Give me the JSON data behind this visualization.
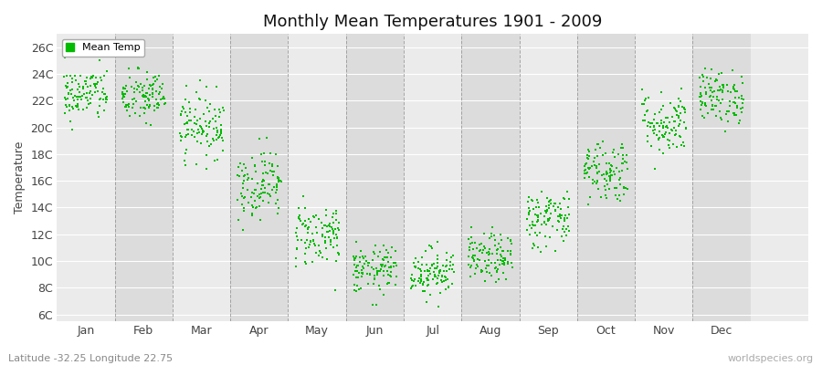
{
  "title": "Monthly Mean Temperatures 1901 - 2009",
  "ylabel": "Temperature",
  "subtitle": "Latitude -32.25 Longitude 22.75",
  "watermark": "worldspecies.org",
  "legend_label": "Mean Temp",
  "ytick_labels": [
    "6C",
    "8C",
    "10C",
    "12C",
    "14C",
    "16C",
    "18C",
    "20C",
    "22C",
    "24C",
    "26C"
  ],
  "ytick_values": [
    6,
    8,
    10,
    12,
    14,
    16,
    18,
    20,
    22,
    24,
    26
  ],
  "ylim": [
    5.5,
    27
  ],
  "xlim": [
    -0.5,
    12.5
  ],
  "xtick_positions": [
    0,
    1,
    2,
    3,
    4,
    5,
    6,
    7,
    8,
    9,
    10,
    11
  ],
  "xtick_labels": [
    "Jan",
    "Feb",
    "Mar",
    "Apr",
    "May",
    "Jun",
    "Jul",
    "Aug",
    "Sep",
    "Oct",
    "Nov",
    "Dec"
  ],
  "dot_color": "#00bb00",
  "bg_color_light": "#ebebeb",
  "bg_color_dark": "#dcdcdc",
  "grid_color": "#888888",
  "mean_temps": [
    22.5,
    22.3,
    20.2,
    15.8,
    12.0,
    9.3,
    9.2,
    10.2,
    13.2,
    16.8,
    20.3,
    22.3
  ],
  "std_temps": [
    1.0,
    1.0,
    1.2,
    1.3,
    1.2,
    0.9,
    0.9,
    0.9,
    1.1,
    1.2,
    1.2,
    1.0
  ],
  "n_years": 109,
  "seed": 42,
  "dot_size": 3,
  "title_fontsize": 13,
  "axis_label_fontsize": 9,
  "tick_fontsize": 9
}
